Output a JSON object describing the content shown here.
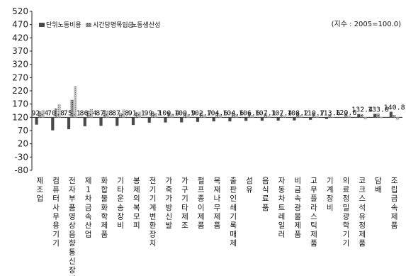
{
  "chart_data": {
    "type": "bar",
    "note": "(지수 : 2005=100.0)",
    "ylim": [
      -80,
      520
    ],
    "yticks": [
      520,
      470,
      420,
      370,
      320,
      270,
      220,
      170,
      120,
      70,
      20,
      -30,
      -80
    ],
    "grid": false,
    "legend_position": "top-left",
    "categories": [
      "제조업",
      "컴퓨터사무용기기",
      "전자부품영상음향통신장비",
      "제1차금속산업",
      "화합물화학제품",
      "기타운송장비",
      "봉제의복모피",
      "전기기계변환장치",
      "가죽가방신발",
      "가구기타제조",
      "펄프종이제품",
      "목재나무제품",
      "출판인쇄기록매체",
      "섬유",
      "음식료품",
      "자동차트레일러",
      "비금속광물제품",
      "고무플라스틱제품",
      "기계장비",
      "의료정밀광학기기",
      "코크스석유정제품",
      "담배",
      "조립금속제품"
    ],
    "series": [
      {
        "name": "단위노동비용",
        "values": [
          92.4,
          70.8,
          75.1,
          86.4,
          87.8,
          87.8,
          91.1,
          99.7,
          100.4,
          100.9,
          102.7,
          104.6,
          104.6,
          106.6,
          107.1,
          107.4,
          108.2,
          110.7,
          113.6,
          120.6,
          132.4,
          133.0,
          140.8
        ]
      },
      {
        "name": "시간당명목임금",
        "values": [
          142,
          153,
          186,
          145,
          148,
          135,
          140,
          142,
          140,
          136,
          138,
          140,
          140,
          138,
          135,
          134,
          138,
          137,
          130,
          136,
          132,
          134,
          128
        ]
      },
      {
        "name": "노동생산성",
        "values": [
          148,
          170,
          238,
          151,
          146,
          149,
          141,
          137,
          133,
          131,
          130,
          133,
          132,
          129,
          126,
          125,
          129,
          125,
          121,
          126,
          112,
          117,
          110
        ]
      }
    ],
    "data_labels": [
      "92.4",
      "70.8",
      "75.1",
      "86.4",
      "87.8",
      "87.8",
      "91.1",
      "99.7",
      "100.4",
      "100.9",
      "102.7",
      "104.6",
      "104.6",
      "106.6",
      "107.1",
      "107.4",
      "108.2",
      "110.7",
      "113.6",
      "120.6",
      "132.4",
      "133.0",
      "140.8"
    ],
    "colors": [
      "#5a5a5a",
      "#9a9a9a",
      "#d2d2d2"
    ]
  }
}
